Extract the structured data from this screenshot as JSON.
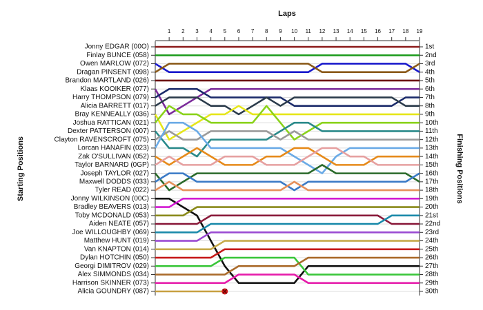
{
  "chart_data": {
    "type": "line",
    "x_title": "Laps",
    "y_title": "Starting Positions",
    "y2_title": "Finishing Positions",
    "x": [
      0,
      1,
      2,
      3,
      4,
      5,
      6,
      7,
      8,
      9,
      10,
      11,
      12,
      13,
      14,
      15,
      16,
      17,
      18,
      19
    ],
    "xlim": [
      0,
      19
    ],
    "xticks": [
      1,
      2,
      3,
      4,
      5,
      6,
      7,
      8,
      9,
      10,
      11,
      12,
      13,
      14,
      15,
      16,
      17,
      18,
      19
    ],
    "ylim": [
      1,
      30
    ],
    "yticks": [
      {
        "value": 1,
        "label": "1st"
      },
      {
        "value": 2,
        "label": "2nd"
      },
      {
        "value": 3,
        "label": "3rd"
      },
      {
        "value": 4,
        "label": "4th"
      },
      {
        "value": 5,
        "label": "5th"
      },
      {
        "value": 6,
        "label": "6th"
      },
      {
        "value": 7,
        "label": "7th"
      },
      {
        "value": 8,
        "label": "8th"
      },
      {
        "value": 9,
        "label": "9th"
      },
      {
        "value": 10,
        "label": "10th"
      },
      {
        "value": 11,
        "label": "11th"
      },
      {
        "value": 12,
        "label": "12th"
      },
      {
        "value": 13,
        "label": "13th"
      },
      {
        "value": 14,
        "label": "14th"
      },
      {
        "value": 15,
        "label": "15th"
      },
      {
        "value": 16,
        "label": "16th"
      },
      {
        "value": 17,
        "label": "17th"
      },
      {
        "value": 18,
        "label": "18th"
      },
      {
        "value": 19,
        "label": "19th"
      },
      {
        "value": 20,
        "label": "20th"
      },
      {
        "value": 21,
        "label": "21st"
      },
      {
        "value": 22,
        "label": "22nd"
      },
      {
        "value": 23,
        "label": "23rd"
      },
      {
        "value": 24,
        "label": "24th"
      },
      {
        "value": 25,
        "label": "25th"
      },
      {
        "value": 26,
        "label": "26th"
      },
      {
        "value": 27,
        "label": "27th"
      },
      {
        "value": 28,
        "label": "28th"
      },
      {
        "value": 29,
        "label": "29th"
      },
      {
        "value": 30,
        "label": "30th"
      }
    ],
    "series": [
      {
        "name": "Jonny EDGAR (00O)",
        "color": "#8b1a1a",
        "values": [
          1,
          1,
          1,
          1,
          1,
          1,
          1,
          1,
          1,
          1,
          1,
          1,
          1,
          1,
          1,
          1,
          1,
          1,
          1,
          1
        ]
      },
      {
        "name": "Finlay BUNCE (058)",
        "color": "#1a9a1a",
        "values": [
          2,
          2,
          2,
          2,
          2,
          2,
          2,
          2,
          2,
          2,
          2,
          2,
          2,
          2,
          2,
          2,
          2,
          2,
          2,
          2
        ]
      },
      {
        "name": "Owen MARLOW (072)",
        "color": "#1a1acc",
        "values": [
          3,
          4,
          4,
          4,
          4,
          4,
          4,
          4,
          4,
          4,
          4,
          4,
          3,
          3,
          3,
          3,
          3,
          3,
          3,
          4
        ]
      },
      {
        "name": "Dragan PINSENT (098)",
        "color": "#8b5a1a",
        "values": [
          4,
          3,
          3,
          3,
          3,
          3,
          3,
          3,
          3,
          3,
          3,
          3,
          4,
          4,
          4,
          4,
          4,
          4,
          4,
          3
        ]
      },
      {
        "name": "Brandon MARTLAND (026)",
        "color": "#6b1010",
        "values": [
          5,
          5,
          5,
          5,
          5,
          5,
          5,
          5,
          5,
          5,
          5,
          5,
          5,
          5,
          5,
          5,
          5,
          5,
          5,
          5
        ]
      },
      {
        "name": "Klaas KOOIKER (077)",
        "color": "#7b2a9a",
        "values": [
          6,
          9,
          8,
          7,
          6,
          6,
          6,
          6,
          6,
          6,
          6,
          6,
          6,
          6,
          6,
          6,
          6,
          6,
          6,
          6
        ]
      },
      {
        "name": "Harry THOMPSON (079)",
        "color": "#1a2a6a",
        "values": [
          7,
          6,
          6,
          6,
          7,
          7,
          7,
          7,
          7,
          7,
          8,
          8,
          8,
          8,
          8,
          8,
          8,
          8,
          7,
          7
        ]
      },
      {
        "name": "Alicia BARRETT (017)",
        "color": "#2a3a4a",
        "values": [
          8,
          7,
          7,
          7,
          8,
          8,
          9,
          8,
          7,
          8,
          7,
          7,
          7,
          7,
          7,
          7,
          7,
          7,
          8,
          8
        ]
      },
      {
        "name": "Bray KENNEALLY (036)",
        "color": "#e6e61a",
        "values": [
          9,
          12,
          11,
          10,
          9,
          9,
          8,
          9,
          9,
          9,
          9,
          9,
          9,
          9,
          9,
          9,
          9,
          9,
          9,
          9
        ]
      },
      {
        "name": "Joshua RATTICAN (021)",
        "color": "#8ad21a",
        "values": [
          10,
          8,
          9,
          9,
          10,
          10,
          10,
          10,
          8,
          10,
          12,
          11,
          10,
          10,
          10,
          10,
          10,
          10,
          10,
          10
        ]
      },
      {
        "name": "Dexter PATTERSON (007)",
        "color": "#2a8a8a",
        "values": [
          11,
          13,
          13,
          14,
          12,
          12,
          12,
          12,
          12,
          11,
          10,
          10,
          11,
          11,
          11,
          11,
          11,
          11,
          11,
          11
        ]
      },
      {
        "name": "Clayton RAVENSCROFT (075)",
        "color": "#9a9a9a",
        "values": [
          12,
          11,
          12,
          12,
          11,
          11,
          11,
          11,
          11,
          12,
          11,
          12,
          12,
          12,
          12,
          12,
          12,
          12,
          12,
          12
        ]
      },
      {
        "name": "Lorcan HANAFIN (023)",
        "color": "#6aaae6",
        "values": [
          13,
          10,
          10,
          11,
          13,
          13,
          13,
          13,
          13,
          13,
          14,
          15,
          16,
          14,
          13,
          13,
          13,
          13,
          13,
          13
        ]
      },
      {
        "name": "Zak O'SULLIVAN (052)",
        "color": "#e68a1a",
        "values": [
          14,
          15,
          14,
          13,
          14,
          15,
          15,
          15,
          14,
          14,
          13,
          13,
          14,
          15,
          15,
          15,
          14,
          14,
          14,
          14
        ]
      },
      {
        "name": "Taylor BARNARD (0GP)",
        "color": "#e6a0a0",
        "values": [
          15,
          14,
          15,
          15,
          15,
          14,
          14,
          14,
          15,
          15,
          15,
          14,
          13,
          13,
          14,
          14,
          15,
          15,
          15,
          15
        ]
      },
      {
        "name": "Joseph TAYLOR (027)",
        "color": "#2a6a2a",
        "values": [
          16,
          18,
          17,
          16,
          16,
          16,
          16,
          16,
          16,
          16,
          16,
          16,
          15,
          16,
          16,
          16,
          16,
          16,
          16,
          17
        ]
      },
      {
        "name": "Maxwell DODDS (033)",
        "color": "#3a7ac6",
        "values": [
          17,
          16,
          16,
          17,
          17,
          17,
          17,
          17,
          17,
          17,
          18,
          17,
          17,
          17,
          17,
          17,
          17,
          17,
          17,
          16
        ]
      },
      {
        "name": "Tyler READ (022)",
        "color": "#e6905a",
        "values": [
          18,
          17,
          18,
          18,
          18,
          18,
          18,
          18,
          18,
          18,
          17,
          18,
          18,
          18,
          18,
          18,
          18,
          18,
          18,
          18
        ]
      },
      {
        "name": "Jonny WILKINSON (00C)",
        "color": "#111111",
        "values": [
          19,
          19,
          20,
          21,
          24,
          27,
          29,
          29,
          29,
          29,
          29,
          27,
          27,
          27,
          27,
          27,
          27,
          27,
          27,
          27
        ]
      },
      {
        "name": "Bradley BEAVERS (013)",
        "color": "#d21ad2",
        "values": [
          20,
          20,
          19,
          19,
          19,
          19,
          19,
          19,
          19,
          19,
          19,
          19,
          19,
          19,
          19,
          19,
          19,
          19,
          19,
          19
        ]
      },
      {
        "name": "Toby MCDONALD (053)",
        "color": "#8a8a1a",
        "values": [
          21,
          21,
          21,
          20,
          20,
          20,
          20,
          20,
          20,
          20,
          20,
          20,
          20,
          20,
          20,
          20,
          20,
          20,
          20,
          20
        ]
      },
      {
        "name": "Aiden NEATE (057)",
        "color": "#8a1a3a",
        "values": [
          22,
          22,
          22,
          22,
          21,
          21,
          21,
          21,
          21,
          21,
          21,
          21,
          21,
          21,
          21,
          21,
          21,
          22,
          22,
          22
        ]
      },
      {
        "name": "Joe WILLOUGHBY (069)",
        "color": "#1a8aaa",
        "values": [
          23,
          23,
          23,
          23,
          22,
          22,
          22,
          22,
          22,
          22,
          22,
          22,
          22,
          22,
          22,
          22,
          22,
          21,
          21,
          21
        ]
      },
      {
        "name": "Matthew HUNT (019)",
        "color": "#9a4ad2",
        "values": [
          24,
          24,
          24,
          24,
          23,
          23,
          23,
          23,
          23,
          23,
          23,
          23,
          23,
          23,
          23,
          23,
          23,
          23,
          23,
          23
        ]
      },
      {
        "name": "Van KNAPTON (014)",
        "color": "#c6aa4a",
        "values": [
          25,
          25,
          25,
          25,
          25,
          24,
          24,
          24,
          24,
          24,
          24,
          24,
          24,
          24,
          24,
          24,
          24,
          24,
          24,
          24
        ]
      },
      {
        "name": "Dylan HOTCHIN (050)",
        "color": "#c61a1a",
        "values": [
          26,
          26,
          26,
          26,
          26,
          25,
          25,
          25,
          25,
          25,
          25,
          25,
          25,
          25,
          25,
          25,
          25,
          25,
          25,
          25
        ]
      },
      {
        "name": "Georgi DIMITROV (029)",
        "color": "#3ac63a",
        "values": [
          27,
          27,
          27,
          27,
          27,
          26,
          26,
          26,
          26,
          26,
          26,
          28,
          28,
          28,
          28,
          28,
          28,
          28,
          28,
          28
        ]
      },
      {
        "name": "Alex SIMMONDS (034)",
        "color": "#aa6a2a",
        "values": [
          28,
          28,
          28,
          28,
          28,
          28,
          27,
          27,
          27,
          27,
          27,
          26,
          26,
          26,
          26,
          26,
          26,
          26,
          26,
          26
        ]
      },
      {
        "name": "Harrison SKINNER (073)",
        "color": "#e61aaa",
        "values": [
          29,
          29,
          29,
          29,
          29,
          29,
          28,
          28,
          28,
          28,
          28,
          29,
          29,
          29,
          29,
          29,
          29,
          29,
          29,
          29
        ]
      },
      {
        "name": "Alicia GOUNDRY (087)",
        "color": "#c8a040",
        "values": [
          30,
          30,
          30,
          30,
          30,
          30,
          null,
          null,
          null,
          null,
          null,
          null,
          null,
          null,
          null,
          null,
          null,
          null,
          null,
          null
        ]
      }
    ]
  }
}
